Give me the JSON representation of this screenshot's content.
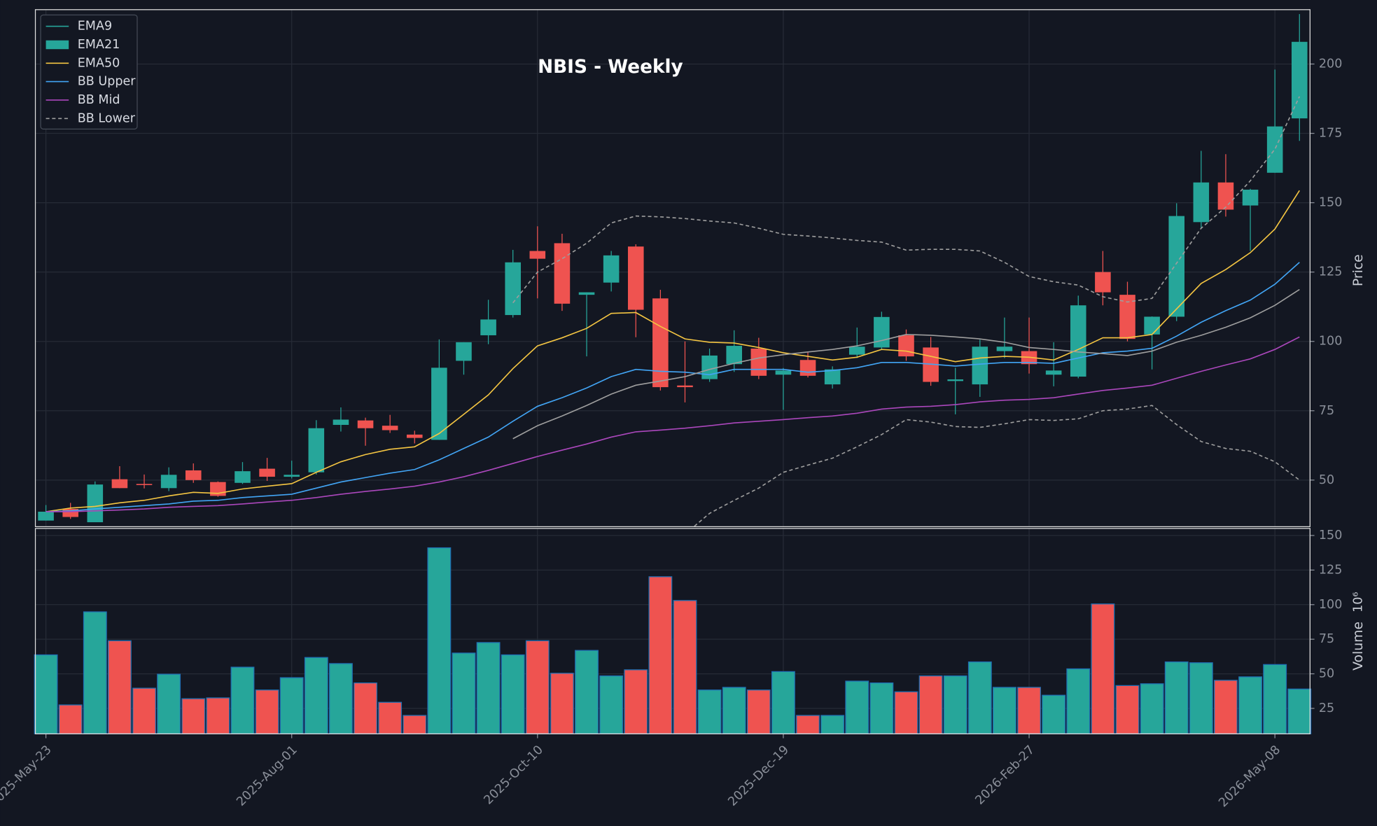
{
  "chart_data": {
    "type": "candlestick",
    "title": "NBIS - Weekly",
    "categories": [
      "2025-May-23",
      null,
      null,
      null,
      null,
      null,
      null,
      null,
      null,
      null,
      "2025-Aug-01",
      null,
      null,
      null,
      null,
      null,
      null,
      null,
      null,
      null,
      "2025-Oct-10",
      null,
      null,
      null,
      null,
      null,
      null,
      null,
      null,
      null,
      "2025-Dec-19",
      null,
      null,
      null,
      null,
      null,
      null,
      null,
      null,
      null,
      "2026-Feb-27",
      null,
      null,
      null,
      null,
      null,
      null,
      null,
      null,
      null,
      "2026-May-08",
      null
    ],
    "open": [
      35.4,
      39.6,
      34.8,
      50.3,
      48.6,
      47.1,
      53.5,
      49.3,
      49.0,
      54.1,
      51.2,
      52.8,
      69.9,
      71.5,
      69.6,
      66.4,
      64.5,
      93.0,
      102.2,
      109.5,
      132.6,
      135.4,
      116.8,
      121.2,
      134.2,
      115.5,
      84.1,
      86.4,
      91.8,
      97.4,
      88.0,
      93.3,
      84.5,
      95.2,
      97.8,
      102.2,
      97.8,
      85.7,
      84.5,
      96.5,
      96.5,
      88.0,
      87.3,
      125.0,
      116.8,
      102.5,
      108.9,
      143.0,
      157.3,
      149.0,
      160.8,
      180.4
    ],
    "high": [
      41.0,
      41.8,
      49.5,
      55.0,
      52.0,
      54.6,
      56.0,
      49.5,
      56.5,
      58.0,
      57.0,
      71.6,
      76.2,
      72.5,
      73.5,
      67.8,
      100.7,
      99.7,
      115.0,
      133.0,
      141.5,
      138.8,
      117.7,
      132.6,
      135.0,
      118.6,
      100.0,
      97.4,
      104.0,
      101.3,
      90.4,
      96.0,
      91.0,
      105.0,
      110.7,
      104.3,
      101.6,
      90.5,
      100.6,
      108.6,
      108.6,
      99.7,
      116.5,
      132.6,
      121.5,
      109.0,
      149.8,
      168.7,
      167.5,
      155.0,
      198.0,
      218.0
    ],
    "low": [
      35.4,
      36.0,
      34.8,
      47.1,
      47.0,
      46.0,
      49.0,
      44.0,
      48.6,
      49.7,
      50.6,
      52.0,
      67.5,
      62.4,
      67.0,
      63.2,
      64.5,
      88.0,
      99.0,
      108.6,
      115.5,
      111.0,
      94.6,
      118.0,
      101.5,
      82.3,
      78.0,
      85.4,
      89.0,
      86.4,
      75.3,
      87.0,
      83.0,
      94.0,
      97.0,
      93.0,
      84.0,
      73.7,
      80.0,
      94.0,
      88.4,
      83.8,
      86.7,
      113.0,
      100.0,
      89.9,
      107.3,
      141.0,
      145.0,
      132.6,
      160.8,
      172.3
    ],
    "close": [
      38.6,
      36.7,
      48.4,
      47.1,
      48.2,
      51.9,
      50.0,
      44.3,
      53.2,
      51.2,
      51.9,
      68.7,
      71.8,
      68.7,
      68.0,
      65.2,
      90.5,
      99.7,
      107.9,
      128.5,
      129.8,
      113.6,
      117.7,
      131.0,
      111.4,
      83.5,
      83.5,
      94.9,
      98.4,
      87.6,
      89.5,
      87.6,
      89.9,
      98.1,
      108.8,
      94.6,
      85.4,
      86.3,
      98.1,
      98.1,
      91.8,
      89.5,
      113.0,
      117.7,
      100.9,
      108.9,
      145.2,
      157.3,
      147.5,
      154.7,
      177.5,
      208.0
    ],
    "up_color": "#26a69a",
    "down_color": "#ef5350",
    "lines": [
      {
        "color": "#f4c542",
        "dash": false,
        "values": [
          38.6,
          39.9,
          40.5,
          41.8,
          42.7,
          44.3,
          45.6,
          45.2,
          46.8,
          47.8,
          48.7,
          52.8,
          56.6,
          59.2,
          61.1,
          62.0,
          66.8,
          73.7,
          80.7,
          90.2,
          98.4,
          101.3,
          104.7,
          110.1,
          110.4,
          105.4,
          100.9,
          99.7,
          99.4,
          97.8,
          95.9,
          94.6,
          93.3,
          94.3,
          97.1,
          96.5,
          94.6,
          92.7,
          94.0,
          94.6,
          94.3,
          93.3,
          97.1,
          101.3,
          101.3,
          102.5,
          111.7,
          120.9,
          125.9,
          132.0,
          140.5,
          154.4
        ]
      },
      {
        "color": "#42a5f5",
        "dash": false,
        "values": [
          38.6,
          38.9,
          39.6,
          40.2,
          40.8,
          41.4,
          42.4,
          42.7,
          43.7,
          44.3,
          44.9,
          47.1,
          49.3,
          50.9,
          52.5,
          53.8,
          57.3,
          61.4,
          65.5,
          71.2,
          76.6,
          79.7,
          83.2,
          87.3,
          89.9,
          89.2,
          88.9,
          88.0,
          89.9,
          89.9,
          89.9,
          88.9,
          89.5,
          90.5,
          92.4,
          92.4,
          91.8,
          91.1,
          91.8,
          92.4,
          92.4,
          92.1,
          94.0,
          95.9,
          96.5,
          97.5,
          101.9,
          106.9,
          111.1,
          114.9,
          120.6,
          128.5
        ]
      },
      {
        "color": "#ab47bc",
        "dash": false,
        "values": [
          38.6,
          38.6,
          38.9,
          39.2,
          39.6,
          40.2,
          40.5,
          40.8,
          41.4,
          42.1,
          42.7,
          43.7,
          44.9,
          45.9,
          46.8,
          47.8,
          49.3,
          51.2,
          53.5,
          56.0,
          58.5,
          60.8,
          63.0,
          65.5,
          67.4,
          68.0,
          68.7,
          69.6,
          70.6,
          71.2,
          71.8,
          72.5,
          73.1,
          74.1,
          75.6,
          76.3,
          76.6,
          77.2,
          78.2,
          78.8,
          79.1,
          79.7,
          81.0,
          82.3,
          83.2,
          84.2,
          86.7,
          89.2,
          91.5,
          93.7,
          97.1,
          101.6
        ]
      },
      {
        "color": "#9e9e9e",
        "dash": false,
        "values": [
          null,
          null,
          null,
          null,
          null,
          null,
          null,
          null,
          null,
          null,
          null,
          null,
          null,
          null,
          null,
          null,
          null,
          null,
          null,
          64.9,
          69.6,
          73.1,
          76.9,
          81.0,
          84.2,
          85.7,
          87.3,
          89.9,
          92.1,
          94.0,
          95.2,
          96.2,
          97.1,
          98.4,
          100.3,
          102.5,
          102.2,
          101.6,
          100.9,
          99.7,
          97.8,
          97.1,
          96.2,
          95.6,
          94.9,
          96.5,
          99.7,
          102.2,
          105.1,
          108.5,
          113.0,
          118.7
        ]
      },
      {
        "color": "#9e9e9e",
        "dash": true,
        "values": [
          null,
          null,
          null,
          null,
          null,
          null,
          null,
          null,
          null,
          null,
          null,
          null,
          null,
          null,
          null,
          null,
          null,
          null,
          null,
          113.9,
          125.0,
          129.8,
          135.4,
          142.7,
          145.2,
          144.9,
          144.3,
          143.4,
          142.7,
          140.8,
          138.6,
          138.0,
          137.3,
          136.4,
          135.8,
          132.9,
          133.2,
          133.2,
          132.6,
          128.5,
          123.4,
          121.5,
          120.3,
          116.1,
          114.2,
          115.5,
          128.2,
          140.8,
          148.4,
          157.9,
          169.3,
          188.3
        ]
      },
      {
        "color": "#9e9e9e",
        "dash": true,
        "values": [
          null,
          null,
          null,
          null,
          null,
          null,
          null,
          null,
          null,
          null,
          null,
          null,
          null,
          null,
          null,
          null,
          null,
          null,
          null,
          null,
          null,
          null,
          null,
          null,
          null,
          null,
          30.5,
          38.0,
          42.7,
          47.1,
          52.8,
          55.4,
          57.9,
          62.0,
          66.4,
          71.8,
          70.9,
          69.3,
          69.0,
          70.3,
          71.8,
          71.5,
          72.1,
          75.0,
          75.6,
          76.9,
          70.0,
          63.9,
          61.4,
          60.4,
          56.6,
          50.0
        ]
      }
    ],
    "legend": [
      {
        "name": "EMA9",
        "color": "#26a69a",
        "style": "line"
      },
      {
        "name": "EMA21",
        "color": "#26a69a",
        "style": "patch"
      },
      {
        "name": "EMA50",
        "color": "#f4c542",
        "style": "line"
      },
      {
        "name": "BB Upper",
        "color": "#42a5f5",
        "style": "line"
      },
      {
        "name": "BB Mid",
        "color": "#ab47bc",
        "style": "line"
      },
      {
        "name": "BB Lower",
        "color": "#9e9e9e",
        "style": "dashed"
      }
    ],
    "ylabel": "Price",
    "ylim": [
      33.2,
      219.6
    ],
    "yticks": [
      50,
      75,
      100,
      125,
      150,
      175,
      200
    ],
    "grid": true,
    "volume": {
      "ylabel": "Volume",
      "exponent": "10⁶",
      "edge_color": "#1f6fb4",
      "values": [
        63.7,
        27.5,
        94.8,
        73.9,
        39.6,
        49.7,
        32.0,
        32.6,
        54.8,
        38.3,
        47.2,
        61.8,
        57.4,
        43.4,
        29.4,
        19.9,
        141.1,
        65.0,
        72.6,
        63.7,
        73.9,
        50.4,
        66.9,
        48.5,
        52.9,
        120.2,
        103.0,
        38.3,
        40.2,
        38.3,
        51.6,
        19.9,
        19.9,
        44.7,
        43.4,
        37.0,
        48.5,
        48.5,
        58.6,
        40.2,
        40.2,
        34.5,
        53.6,
        100.5,
        41.5,
        42.8,
        58.6,
        58.0,
        45.3,
        47.8,
        56.7,
        39.0
      ],
      "ylim": [
        6.6,
        155.1
      ],
      "yticks": [
        25,
        50,
        75,
        100,
        125,
        150
      ]
    }
  }
}
